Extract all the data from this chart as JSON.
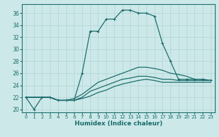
{
  "xlabel": "Humidex (Indice chaleur)",
  "bg_color": "#cce8e8",
  "grid_color": "#b0d4d4",
  "line_color": "#1a6b6b",
  "xlim": [
    -0.5,
    23.5
  ],
  "ylim": [
    19.5,
    37.5
  ],
  "yticks": [
    20,
    22,
    24,
    26,
    28,
    30,
    32,
    34,
    36
  ],
  "xticks": [
    0,
    1,
    2,
    3,
    4,
    5,
    6,
    7,
    8,
    9,
    10,
    11,
    12,
    13,
    14,
    15,
    16,
    17,
    18,
    19,
    20,
    21,
    22,
    23
  ],
  "lines": [
    {
      "x": [
        0,
        1,
        2,
        3,
        4,
        5,
        6,
        7,
        8,
        9,
        10,
        11,
        12,
        13,
        14,
        15,
        16,
        17,
        18,
        19,
        20,
        21,
        22,
        23
      ],
      "y": [
        22,
        20,
        22,
        22,
        21.5,
        21.5,
        21.5,
        26,
        33,
        33,
        35,
        35,
        36.5,
        36.5,
        36,
        36,
        35.5,
        31,
        28,
        25,
        25,
        25,
        25,
        24.8
      ],
      "marker": true
    },
    {
      "x": [
        0,
        2,
        3,
        4,
        5,
        6,
        7,
        8,
        9,
        10,
        11,
        12,
        13,
        14,
        15,
        16,
        17,
        18,
        19,
        20,
        21,
        22,
        23
      ],
      "y": [
        22,
        22,
        22,
        21.5,
        21.5,
        21.8,
        22.5,
        23.5,
        24.5,
        25,
        25.5,
        26,
        26.5,
        27,
        27,
        26.8,
        26.5,
        26,
        25.8,
        25.5,
        25,
        25,
        24.8
      ],
      "marker": false
    },
    {
      "x": [
        0,
        2,
        3,
        4,
        5,
        6,
        7,
        8,
        9,
        10,
        11,
        12,
        13,
        14,
        15,
        16,
        17,
        18,
        19,
        20,
        21,
        22,
        23
      ],
      "y": [
        22,
        22,
        22,
        21.5,
        21.5,
        21.5,
        22,
        23,
        23.5,
        24,
        24.5,
        25,
        25.2,
        25.5,
        25.5,
        25.3,
        25,
        25,
        24.8,
        24.8,
        24.8,
        24.8,
        24.8
      ],
      "marker": false
    },
    {
      "x": [
        0,
        2,
        3,
        4,
        5,
        6,
        7,
        8,
        9,
        10,
        11,
        12,
        13,
        14,
        15,
        16,
        17,
        18,
        19,
        20,
        21,
        22,
        23
      ],
      "y": [
        22,
        22,
        22,
        21.5,
        21.5,
        21.5,
        21.8,
        22.2,
        22.8,
        23.2,
        23.8,
        24.2,
        24.5,
        24.8,
        25,
        24.8,
        24.5,
        24.5,
        24.5,
        24.5,
        24.5,
        24.5,
        24.5
      ],
      "marker": false
    }
  ]
}
